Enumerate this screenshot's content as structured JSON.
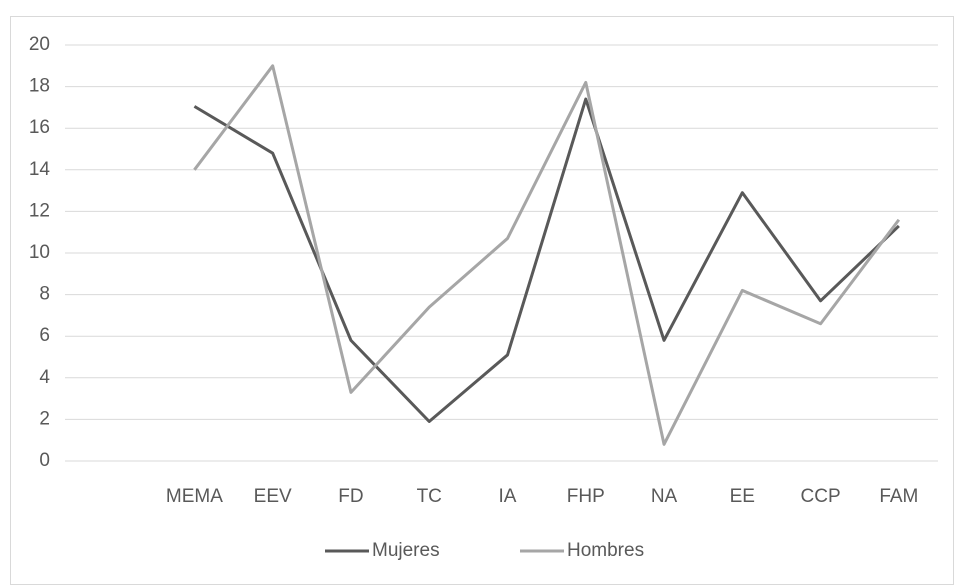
{
  "chart_data": {
    "type": "line",
    "categories": [
      null,
      "MEMA",
      "EEV",
      "FD",
      "TC",
      "IA",
      "FHP",
      "NA",
      "EE",
      "CCP",
      "FAM"
    ],
    "series": [
      {
        "name": "Mujeres",
        "color": "#595959",
        "values": [
          null,
          17.05,
          14.8,
          5.8,
          1.9,
          5.1,
          17.4,
          5.8,
          12.9,
          7.7,
          11.3
        ]
      },
      {
        "name": "Hombres",
        "color": "#a6a6a6",
        "values": [
          null,
          14.0,
          19.0,
          3.3,
          7.4,
          10.7,
          18.2,
          0.8,
          8.2,
          6.6,
          11.6
        ]
      }
    ],
    "ylim": [
      0,
      20
    ],
    "yticks": [
      0,
      2,
      4,
      6,
      8,
      10,
      12,
      14,
      16,
      18,
      20
    ],
    "grid": true,
    "legend": "bottom"
  }
}
